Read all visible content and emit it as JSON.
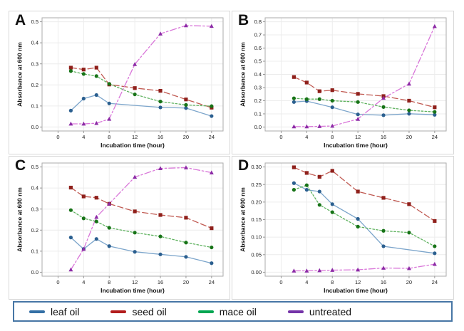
{
  "figure": {
    "xlabel": "Incubation time (hour)",
    "ylabel": "Absorbance at 600 nm"
  },
  "series_styles": [
    {
      "name": "leaf oil",
      "line_color": "#7ca5cb",
      "marker_color": "#2b5f8f",
      "dash": "",
      "marker": "circle"
    },
    {
      "name": "seed oil",
      "line_color": "#c05a52",
      "marker_color": "#8f201b",
      "dash": "8,4",
      "marker": "square"
    },
    {
      "name": "mace oil",
      "line_color": "#5fb25f",
      "marker_color": "#177317",
      "dash": "2.5,2.5",
      "marker": "circle"
    },
    {
      "name": "untreated",
      "line_color": "#d977d9",
      "marker_color": "#8c2ba6",
      "dash": "9,3,2.5,3",
      "marker": "triangle"
    }
  ],
  "legend": {
    "items": [
      {
        "label": "leaf oil",
        "color": "#336fa5"
      },
      {
        "label": "seed oil",
        "color": "#b21c1c"
      },
      {
        "label": "mace oil",
        "color": "#00a651"
      },
      {
        "label": "untreated",
        "color": "#7433a8"
      }
    ]
  },
  "chart_data": [
    {
      "label": "A",
      "type": "line",
      "xlabel": "Incubation time (hour)",
      "ylabel": "Absorbance at 600 nm",
      "x": [
        2,
        4,
        6,
        8,
        12,
        16,
        20,
        24
      ],
      "xtick_values": [
        0,
        4,
        8,
        12,
        16,
        20,
        24
      ],
      "xtick_labels": [
        "0",
        "4",
        "8",
        "12",
        "16",
        "20",
        "24"
      ],
      "xlim": [
        -2.5,
        25.8
      ],
      "ylim": [
        0,
        0.5
      ],
      "ytick_values": [
        0,
        0.1,
        0.2,
        0.3,
        0.4,
        0.5
      ],
      "ytick_labels": [
        "0.0",
        "0.1",
        "0.2",
        "0.3",
        "0.4",
        "0.5"
      ],
      "grid": true,
      "series": [
        {
          "name": "leaf oil",
          "values": [
            0.078,
            0.135,
            0.152,
            0.112,
            null,
            0.093,
            0.09,
            0.052
          ]
        },
        {
          "name": "seed oil",
          "values": [
            0.282,
            0.273,
            0.282,
            0.202,
            0.185,
            0.172,
            0.131,
            0.092
          ]
        },
        {
          "name": "mace oil",
          "values": [
            0.266,
            0.252,
            0.242,
            0.205,
            0.155,
            0.121,
            0.105,
            0.099
          ]
        },
        {
          "name": "untreated",
          "values": [
            0.015,
            0.015,
            0.018,
            0.038,
            0.298,
            0.443,
            0.482,
            0.479
          ]
        }
      ]
    },
    {
      "label": "B",
      "type": "line",
      "xlabel": "Incubation time (hour)",
      "ylabel": "Absorbance at 600 nm",
      "x": [
        2,
        4,
        6,
        8,
        12,
        16,
        20,
        24
      ],
      "xtick_values": [
        0,
        4,
        8,
        12,
        16,
        20,
        24
      ],
      "xtick_labels": [
        "0",
        "4",
        "8",
        "12",
        "16",
        "20",
        "24"
      ],
      "xlim": [
        -2.5,
        25.8
      ],
      "ylim": [
        0,
        0.8
      ],
      "ytick_values": [
        0,
        0.1,
        0.2,
        0.3,
        0.4,
        0.5,
        0.6,
        0.7,
        0.8
      ],
      "ytick_labels": [
        "0.0",
        "0.1",
        "0.2",
        "0.3",
        "0.4",
        "0.5",
        "0.6",
        "0.7",
        "0.8"
      ],
      "grid": true,
      "series": [
        {
          "name": "leaf oil",
          "values": [
            0.19,
            0.197,
            null,
            0.15,
            0.096,
            0.09,
            0.101,
            0.093
          ]
        },
        {
          "name": "seed oil",
          "values": [
            0.38,
            0.338,
            0.272,
            0.28,
            0.252,
            0.235,
            0.2,
            0.15
          ]
        },
        {
          "name": "mace oil",
          "values": [
            0.218,
            0.212,
            0.212,
            0.2,
            0.19,
            0.152,
            0.127,
            0.115
          ]
        },
        {
          "name": "untreated",
          "values": [
            0.003,
            0.003,
            0.005,
            0.008,
            0.06,
            0.22,
            0.328,
            0.765
          ]
        }
      ]
    },
    {
      "label": "C",
      "type": "line",
      "xlabel": "Incubation time (hour)",
      "ylabel": "Absorbance at 600 nm",
      "x": [
        2,
        4,
        6,
        8,
        12,
        16,
        20,
        24
      ],
      "xtick_values": [
        0,
        4,
        8,
        12,
        16,
        20,
        24
      ],
      "xtick_labels": [
        "0",
        "4",
        "8",
        "12",
        "16",
        "20",
        "24"
      ],
      "xlim": [
        -2.5,
        25.8
      ],
      "ylim": [
        0,
        0.5
      ],
      "ytick_values": [
        0,
        0.1,
        0.2,
        0.3,
        0.4,
        0.5
      ],
      "ytick_labels": [
        "0.0",
        "0.1",
        "0.2",
        "0.3",
        "0.4",
        "0.5"
      ],
      "grid": true,
      "series": [
        {
          "name": "leaf oil",
          "values": [
            0.165,
            0.11,
            0.158,
            0.124,
            0.097,
            0.085,
            0.073,
            0.043
          ]
        },
        {
          "name": "seed oil",
          "values": [
            0.402,
            0.36,
            0.354,
            0.325,
            0.289,
            0.272,
            0.259,
            0.209
          ]
        },
        {
          "name": "mace oil",
          "values": [
            0.295,
            0.256,
            0.241,
            0.211,
            0.188,
            0.17,
            0.141,
            0.118
          ]
        },
        {
          "name": "untreated",
          "values": [
            0.012,
            0.11,
            0.262,
            0.325,
            0.452,
            0.493,
            0.497,
            0.473
          ]
        }
      ]
    },
    {
      "label": "D",
      "type": "line",
      "xlabel": "Incubation time (hour)",
      "ylabel": "Absorbance at 600 nm",
      "x": [
        2,
        4,
        6,
        8,
        12,
        16,
        20,
        24
      ],
      "xtick_values": [
        0,
        4,
        8,
        12,
        16,
        20,
        24
      ],
      "xtick_labels": [
        "0",
        "4",
        "8",
        "12",
        "16",
        "20",
        "24"
      ],
      "xlim": [
        -2.5,
        25.8
      ],
      "ylim": [
        0,
        0.3
      ],
      "ytick_values": [
        0,
        0.05,
        0.1,
        0.15,
        0.2,
        0.25,
        0.3
      ],
      "ytick_labels": [
        "0.00",
        "0.05",
        "0.10",
        "0.15",
        "0.20",
        "0.25",
        "0.30"
      ],
      "grid": true,
      "series": [
        {
          "name": "leaf oil",
          "values": [
            0.254,
            0.235,
            0.23,
            0.194,
            0.152,
            0.074,
            null,
            0.054
          ]
        },
        {
          "name": "seed oil",
          "values": [
            0.299,
            0.283,
            0.272,
            0.289,
            0.23,
            0.212,
            0.194,
            0.146
          ]
        },
        {
          "name": "mace oil",
          "values": [
            0.235,
            0.248,
            0.192,
            0.171,
            0.13,
            0.118,
            0.113,
            0.074
          ]
        },
        {
          "name": "untreated",
          "values": [
            0.004,
            0.004,
            0.005,
            0.006,
            0.007,
            0.012,
            0.011,
            0.023
          ]
        }
      ]
    }
  ]
}
